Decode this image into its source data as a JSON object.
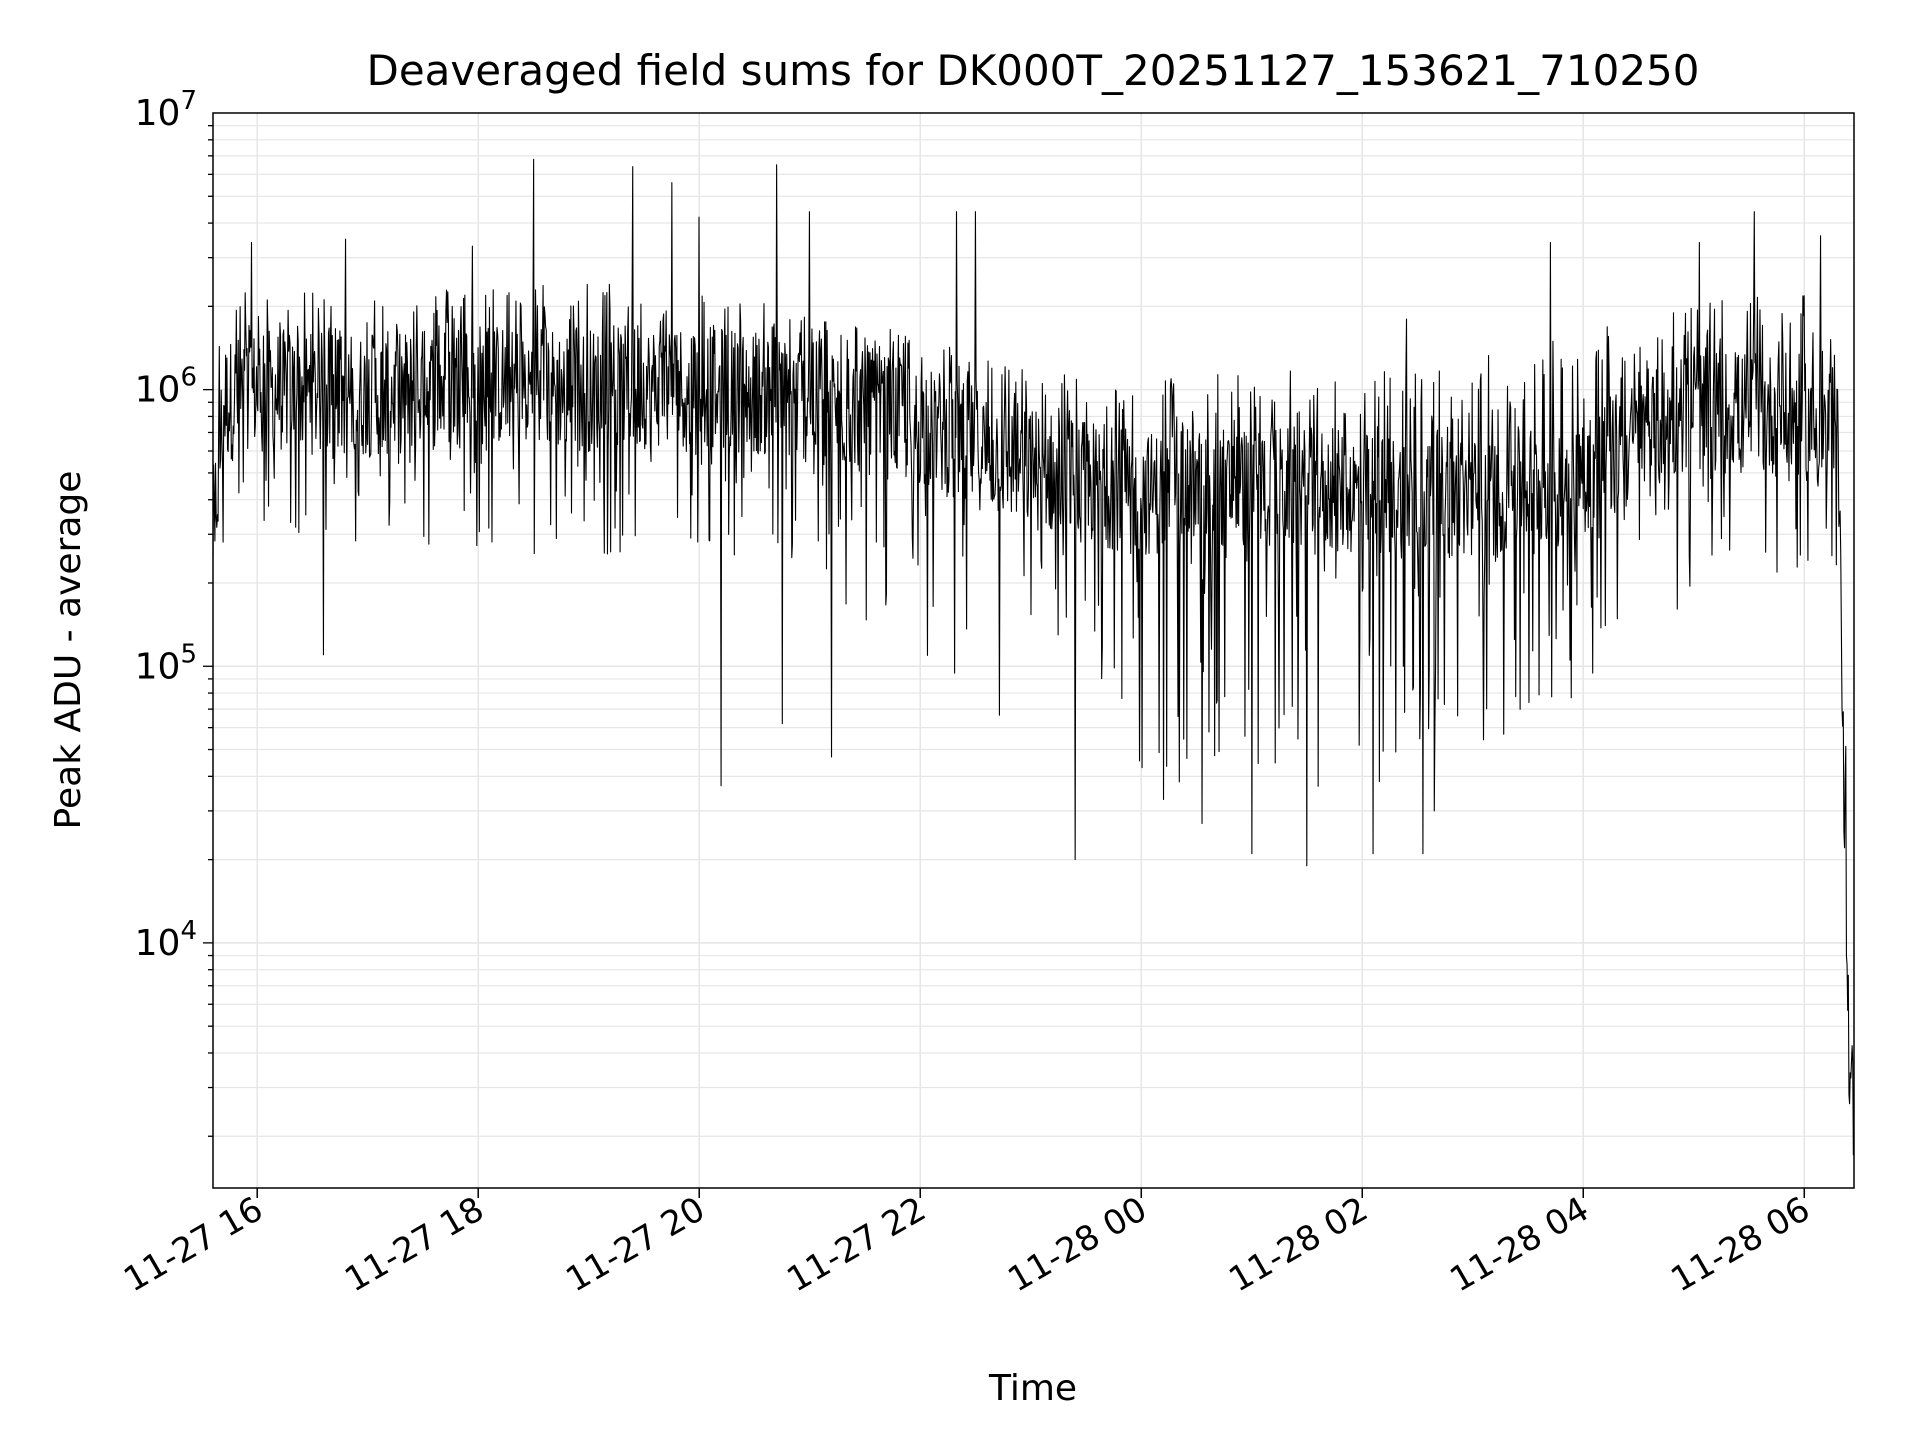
{
  "chart_data": {
    "type": "line",
    "title": "Deaveraged field sums for DK000T_20251127_153621_710250",
    "xlabel": "Time",
    "ylabel": "Peak ADU - average",
    "yscale": "log",
    "ylim": [
      1300,
      10000000
    ],
    "xlim_hours": [
      15.6,
      30.45
    ],
    "grid": true,
    "x_ticks": [
      {
        "label": "11-27 16",
        "hour": 16
      },
      {
        "label": "11-27 18",
        "hour": 18
      },
      {
        "label": "11-27 20",
        "hour": 20
      },
      {
        "label": "11-27 22",
        "hour": 22
      },
      {
        "label": "11-28 00",
        "hour": 24
      },
      {
        "label": "11-28 02",
        "hour": 26
      },
      {
        "label": "11-28 04",
        "hour": 28
      },
      {
        "label": "11-28 06",
        "hour": 30
      }
    ],
    "y_ticks": [
      {
        "base": "10",
        "exp": "4",
        "value": 10000
      },
      {
        "base": "10",
        "exp": "5",
        "value": 100000
      },
      {
        "base": "10",
        "exp": "6",
        "value": 1000000
      },
      {
        "base": "10",
        "exp": "7",
        "value": 10000000
      }
    ],
    "series": [
      {
        "name": "Peak ADU - average",
        "color": "#000000",
        "envelope": {
          "hours": [
            15.6,
            15.7,
            16.0,
            17.0,
            18.0,
            19.0,
            20.0,
            21.0,
            22.0,
            23.0,
            24.0,
            25.0,
            26.0,
            27.0,
            28.0,
            29.0,
            30.0,
            30.3,
            30.35,
            30.4,
            30.45
          ],
          "typical": [
            300000,
            900000,
            1000000,
            950000,
            1050000,
            1000000,
            1050000,
            900000,
            750000,
            520000,
            420000,
            450000,
            420000,
            400000,
            500000,
            850000,
            800000,
            600000,
            80000,
            5000,
            2000
          ],
          "high": [
            1500000,
            2500000,
            2200000,
            2300000,
            2400000,
            2500000,
            2300000,
            1900000,
            1600000,
            1200000,
            1100000,
            1200000,
            1150000,
            1300000,
            1700000,
            2100000,
            2200000,
            1400000,
            200000,
            15000,
            4000
          ],
          "low": [
            150000,
            200000,
            300000,
            280000,
            260000,
            250000,
            250000,
            170000,
            100000,
            45000,
            33000,
            35000,
            32000,
            45000,
            80000,
            180000,
            220000,
            200000,
            30000,
            4000,
            1700
          ]
        },
        "spikes": [
          {
            "hour": 15.95,
            "value": 3400000
          },
          {
            "hour": 16.8,
            "value": 3500000
          },
          {
            "hour": 17.95,
            "value": 3300000
          },
          {
            "hour": 18.5,
            "value": 6800000
          },
          {
            "hour": 19.4,
            "value": 6400000
          },
          {
            "hour": 19.75,
            "value": 5600000
          },
          {
            "hour": 20.0,
            "value": 4200000
          },
          {
            "hour": 20.7,
            "value": 6500000
          },
          {
            "hour": 21.0,
            "value": 4400000
          },
          {
            "hour": 22.33,
            "value": 4400000
          },
          {
            "hour": 22.5,
            "value": 4400000
          },
          {
            "hour": 25.0,
            "value": 2200000
          },
          {
            "hour": 26.4,
            "value": 1800000
          },
          {
            "hour": 27.7,
            "value": 3400000
          },
          {
            "hour": 29.05,
            "value": 3400000
          },
          {
            "hour": 29.55,
            "value": 4400000
          },
          {
            "hour": 30.15,
            "value": 3600000
          }
        ],
        "dips": [
          {
            "hour": 16.6,
            "value": 110000
          },
          {
            "hour": 20.2,
            "value": 37000
          },
          {
            "hour": 20.75,
            "value": 62000
          },
          {
            "hour": 21.2,
            "value": 47000
          },
          {
            "hour": 23.4,
            "value": 20000
          },
          {
            "hour": 24.2,
            "value": 33000
          },
          {
            "hour": 24.55,
            "value": 27000
          },
          {
            "hour": 25.0,
            "value": 21000
          },
          {
            "hour": 25.5,
            "value": 19000
          },
          {
            "hour": 26.1,
            "value": 21000
          },
          {
            "hour": 26.55,
            "value": 21000
          },
          {
            "hour": 26.65,
            "value": 30000
          }
        ]
      }
    ]
  }
}
